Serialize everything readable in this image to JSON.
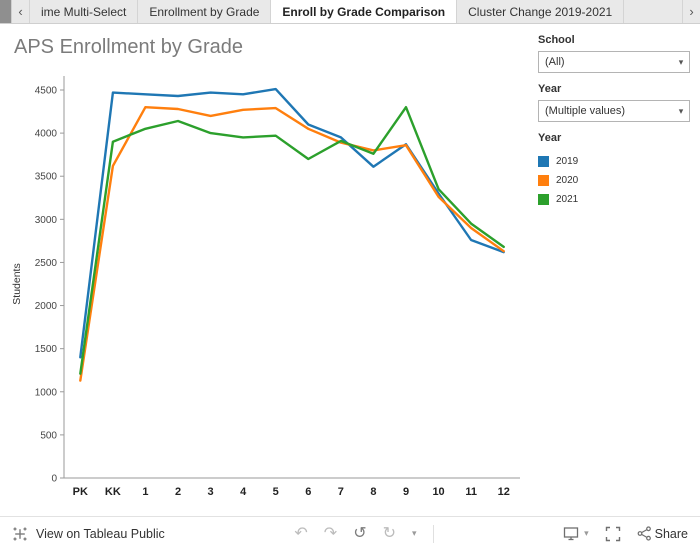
{
  "tabs": {
    "items": [
      {
        "label": "ime Multi-Select",
        "active": false
      },
      {
        "label": "Enrollment by Grade",
        "active": false
      },
      {
        "label": "Enroll by Grade Comparison",
        "active": true
      },
      {
        "label": "Cluster Change 2019-2021",
        "active": false
      }
    ]
  },
  "title": "APS Enrollment by Grade",
  "filters": {
    "school_label": "School",
    "school_value": "(All)",
    "year_label": "Year",
    "year_value": "(Multiple values)"
  },
  "legend": {
    "title": "Year",
    "items": [
      {
        "label": "2019",
        "color": "#1f77b4"
      },
      {
        "label": "2020",
        "color": "#ff7f0e"
      },
      {
        "label": "2021",
        "color": "#2ca02c"
      }
    ]
  },
  "chart_data": {
    "type": "line",
    "title": "APS Enrollment by Grade",
    "categories": [
      "PK",
      "KK",
      "1",
      "2",
      "3",
      "4",
      "5",
      "6",
      "7",
      "8",
      "9",
      "10",
      "11",
      "12"
    ],
    "series": [
      {
        "name": "2019",
        "color": "#1f77b4",
        "values": [
          1400,
          4470,
          4450,
          4430,
          4470,
          4450,
          4510,
          4100,
          3950,
          3610,
          3870,
          3300,
          2760,
          2620
        ]
      },
      {
        "name": "2020",
        "color": "#ff7f0e",
        "values": [
          1130,
          3620,
          4300,
          4280,
          4200,
          4270,
          4290,
          4050,
          3890,
          3800,
          3860,
          3260,
          2900,
          2630
        ]
      },
      {
        "name": "2021",
        "color": "#2ca02c",
        "values": [
          1210,
          3900,
          4050,
          4140,
          4000,
          3950,
          3970,
          3700,
          3910,
          3760,
          4300,
          3350,
          2950,
          2680
        ]
      }
    ],
    "xlabel": "",
    "ylabel": "Students",
    "ylim": [
      0,
      4700
    ],
    "yticks": [
      0,
      500,
      1000,
      1500,
      2000,
      2500,
      3000,
      3500,
      4000,
      4500
    ],
    "grid": false,
    "legend_position": "right"
  },
  "footer": {
    "view_text": "View on Tableau Public",
    "share_label": "Share"
  },
  "icons": {
    "prev": "‹",
    "next": "›",
    "undo": "↶",
    "redo": "↷",
    "reset": "↺",
    "refresh": "↻",
    "caret_down": "▾"
  }
}
